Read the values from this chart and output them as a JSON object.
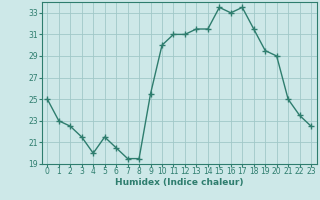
{
  "x": [
    0,
    1,
    2,
    3,
    4,
    5,
    6,
    7,
    8,
    9,
    10,
    11,
    12,
    13,
    14,
    15,
    16,
    17,
    18,
    19,
    20,
    21,
    22,
    23
  ],
  "y": [
    25,
    23,
    22.5,
    21.5,
    20,
    21.5,
    20.5,
    19.5,
    19.5,
    25.5,
    30,
    31,
    31,
    31.5,
    31.5,
    33.5,
    33,
    33.5,
    31.5,
    29.5,
    29,
    25,
    23.5,
    22.5
  ],
  "line_color": "#2e7d6e",
  "marker": "+",
  "bg_color": "#cde8e8",
  "grid_color": "#a0c8c8",
  "xlabel": "Humidex (Indice chaleur)",
  "ylim": [
    19,
    34
  ],
  "xlim": [
    -0.5,
    23.5
  ],
  "yticks": [
    19,
    21,
    23,
    25,
    27,
    29,
    31,
    33
  ],
  "xticks": [
    0,
    1,
    2,
    3,
    4,
    5,
    6,
    7,
    8,
    9,
    10,
    11,
    12,
    13,
    14,
    15,
    16,
    17,
    18,
    19,
    20,
    21,
    22,
    23
  ],
  "tick_color": "#2e7d6e",
  "label_color": "#2e7d6e",
  "axis_color": "#2e7d6e",
  "linewidth": 1.0,
  "markersize": 4,
  "tick_fontsize": 5.5,
  "xlabel_fontsize": 6.5
}
